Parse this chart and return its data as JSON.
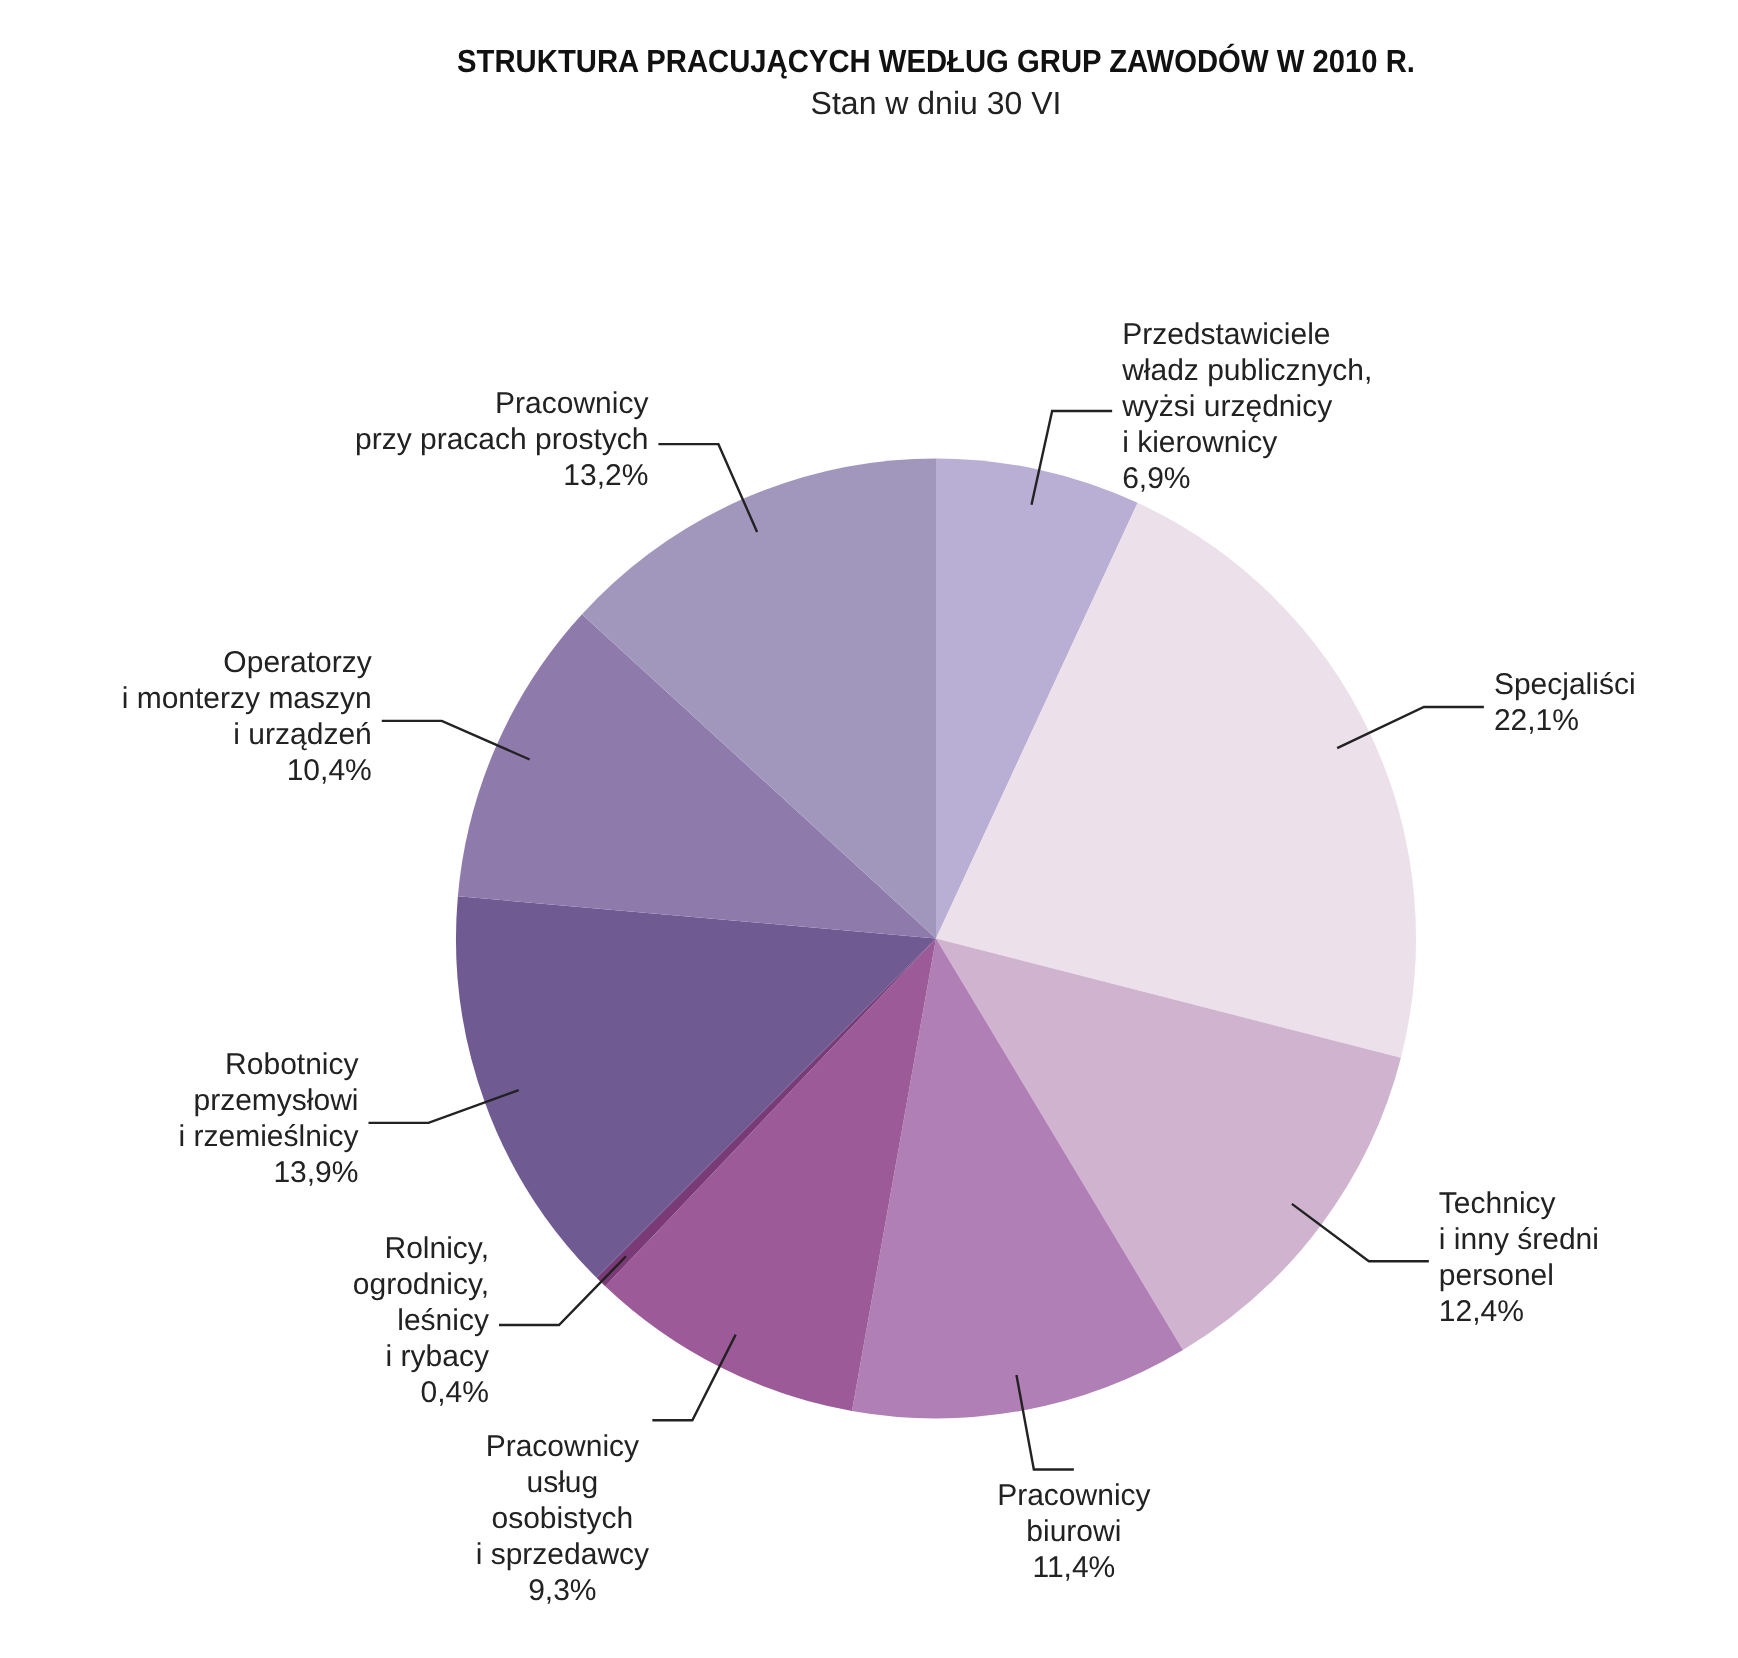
{
  "chart_data": {
    "type": "pie",
    "title": "STRUKTURA PRACUJĄCYCH WEDŁUG GRUP ZAWODÓW W 2010 R.",
    "subtitle": "Stan w dniu 30 VI",
    "categories": [
      "Przedstawiciele\nwładz publicznych,\nwyżsi urzędnicy\ni kierownicy",
      "Specjaliści",
      "Technicy\ni inny średni\npersonel",
      "Pracownicy\nbiurowi",
      "Pracownicy\nusług\nosobistych\ni sprzedawcy",
      "Rolnicy,\nogrodnicy,\nleśnicy\ni rybacy",
      "Robotnicy\nprzemysłowi\ni rzemieślnicy",
      "Operatorzy\ni monterzy maszyn\ni urządzeń",
      "Pracownicy\nprzy pracach prostych"
    ],
    "values": [
      6.9,
      22.1,
      12.4,
      11.4,
      9.3,
      0.4,
      13.9,
      10.4,
      13.2
    ],
    "value_labels": [
      "6,9%",
      "22,1%",
      "12,4%",
      "11,4%",
      "9,3%",
      "0,4%",
      "13,9%",
      "10,4%",
      "13,2%"
    ],
    "colors": [
      "#b9aed3",
      "#ece0ea",
      "#cfb3cf",
      "#b07fb5",
      "#9d5a98",
      "#7a3a78",
      "#6f5a92",
      "#8f7aac",
      "#a197bd"
    ],
    "legend": false
  }
}
